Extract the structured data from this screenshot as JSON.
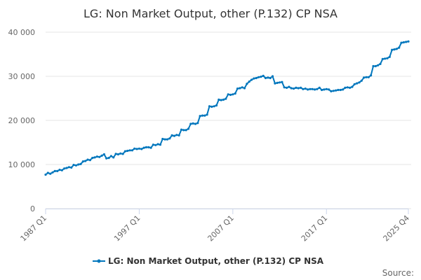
{
  "chart_data": {
    "type": "line",
    "title": "LG: Non Market Output, other (P.132) CP NSA",
    "xlabel": "",
    "ylabel": "",
    "ylim": [
      0,
      40000
    ],
    "yticks": [
      0,
      10000,
      20000,
      30000,
      40000
    ],
    "ytick_labels": [
      "0",
      "10 000",
      "20 000",
      "30 000",
      "40 000"
    ],
    "xlim": [
      "1987 Q1",
      "2025 Q4"
    ],
    "xticks": [
      "1987 Q1",
      "1997 Q1",
      "2007 Q1",
      "2017 Q1",
      "2025 Q4"
    ],
    "grid": true,
    "legend_position": "bottom",
    "series": [
      {
        "name": "LG: Non Market Output, other (P.132) CP NSA",
        "color": "#0277bd",
        "points": [
          [
            "1987 Q1",
            7700
          ],
          [
            "1987 Q2",
            8100
          ],
          [
            "1987 Q3",
            7900
          ],
          [
            "1987 Q4",
            8200
          ],
          [
            "1988 Q1",
            8500
          ],
          [
            "1988 Q2",
            8500
          ],
          [
            "1988 Q3",
            8800
          ],
          [
            "1988 Q4",
            8700
          ],
          [
            "1989 Q1",
            9100
          ],
          [
            "1989 Q2",
            9200
          ],
          [
            "1989 Q3",
            9400
          ],
          [
            "1989 Q4",
            9300
          ],
          [
            "1990 Q1",
            9900
          ],
          [
            "1990 Q2",
            9800
          ],
          [
            "1990 Q3",
            10000
          ],
          [
            "1990 Q4",
            10100
          ],
          [
            "1991 Q1",
            10700
          ],
          [
            "1991 Q2",
            10800
          ],
          [
            "1991 Q3",
            11100
          ],
          [
            "1991 Q4",
            11000
          ],
          [
            "1992 Q1",
            11500
          ],
          [
            "1992 Q2",
            11600
          ],
          [
            "1992 Q3",
            11800
          ],
          [
            "1992 Q4",
            11700
          ],
          [
            "1993 Q1",
            12000
          ],
          [
            "1993 Q2",
            12300
          ],
          [
            "1993 Q3",
            11400
          ],
          [
            "1993 Q4",
            11500
          ],
          [
            "1994 Q1",
            11900
          ],
          [
            "1994 Q2",
            11600
          ],
          [
            "1994 Q3",
            12400
          ],
          [
            "1994 Q4",
            12300
          ],
          [
            "1995 Q1",
            12500
          ],
          [
            "1995 Q2",
            12400
          ],
          [
            "1995 Q3",
            13000
          ],
          [
            "1995 Q4",
            13100
          ],
          [
            "1996 Q1",
            13200
          ],
          [
            "1996 Q2",
            13200
          ],
          [
            "1996 Q3",
            13600
          ],
          [
            "1996 Q4",
            13500
          ],
          [
            "1997 Q1",
            13600
          ],
          [
            "1997 Q2",
            13500
          ],
          [
            "1997 Q3",
            13800
          ],
          [
            "1997 Q4",
            13900
          ],
          [
            "1998 Q1",
            13900
          ],
          [
            "1998 Q2",
            13800
          ],
          [
            "1998 Q3",
            14500
          ],
          [
            "1998 Q4",
            14400
          ],
          [
            "1999 Q1",
            14600
          ],
          [
            "1999 Q2",
            14500
          ],
          [
            "1999 Q3",
            15800
          ],
          [
            "1999 Q4",
            15700
          ],
          [
            "2000 Q1",
            15700
          ],
          [
            "2000 Q2",
            15900
          ],
          [
            "2000 Q3",
            16600
          ],
          [
            "2000 Q4",
            16500
          ],
          [
            "2001 Q1",
            16700
          ],
          [
            "2001 Q2",
            16600
          ],
          [
            "2001 Q3",
            17900
          ],
          [
            "2001 Q4",
            17800
          ],
          [
            "2002 Q1",
            17800
          ],
          [
            "2002 Q2",
            18100
          ],
          [
            "2002 Q3",
            19200
          ],
          [
            "2002 Q4",
            19300
          ],
          [
            "2003 Q1",
            19200
          ],
          [
            "2003 Q2",
            19400
          ],
          [
            "2003 Q3",
            21000
          ],
          [
            "2003 Q4",
            21100
          ],
          [
            "2004 Q1",
            21100
          ],
          [
            "2004 Q2",
            21300
          ],
          [
            "2004 Q3",
            23200
          ],
          [
            "2004 Q4",
            23100
          ],
          [
            "2005 Q1",
            23200
          ],
          [
            "2005 Q2",
            23400
          ],
          [
            "2005 Q3",
            24700
          ],
          [
            "2005 Q4",
            24600
          ],
          [
            "2006 Q1",
            24700
          ],
          [
            "2006 Q2",
            24900
          ],
          [
            "2006 Q3",
            25900
          ],
          [
            "2006 Q4",
            25800
          ],
          [
            "2007 Q1",
            25900
          ],
          [
            "2007 Q2",
            26100
          ],
          [
            "2007 Q3",
            27200
          ],
          [
            "2007 Q4",
            27300
          ],
          [
            "2008 Q1",
            27500
          ],
          [
            "2008 Q2",
            27300
          ],
          [
            "2008 Q3",
            28300
          ],
          [
            "2008 Q4",
            28800
          ],
          [
            "2009 Q1",
            29200
          ],
          [
            "2009 Q2",
            29500
          ],
          [
            "2009 Q3",
            29600
          ],
          [
            "2009 Q4",
            29800
          ],
          [
            "2010 Q1",
            29900
          ],
          [
            "2010 Q2",
            30100
          ],
          [
            "2010 Q3",
            29600
          ],
          [
            "2010 Q4",
            29700
          ],
          [
            "2011 Q1",
            29600
          ],
          [
            "2011 Q2",
            30000
          ],
          [
            "2011 Q3",
            28400
          ],
          [
            "2011 Q4",
            28500
          ],
          [
            "2012 Q1",
            28600
          ],
          [
            "2012 Q2",
            28700
          ],
          [
            "2012 Q3",
            27500
          ],
          [
            "2012 Q4",
            27400
          ],
          [
            "2013 Q1",
            27600
          ],
          [
            "2013 Q2",
            27300
          ],
          [
            "2013 Q3",
            27200
          ],
          [
            "2013 Q4",
            27400
          ],
          [
            "2014 Q1",
            27300
          ],
          [
            "2014 Q2",
            27400
          ],
          [
            "2014 Q3",
            27100
          ],
          [
            "2014 Q4",
            27200
          ],
          [
            "2015 Q1",
            27000
          ],
          [
            "2015 Q2",
            27100
          ],
          [
            "2015 Q3",
            27100
          ],
          [
            "2015 Q4",
            27000
          ],
          [
            "2016 Q1",
            27100
          ],
          [
            "2016 Q2",
            27400
          ],
          [
            "2016 Q3",
            26900
          ],
          [
            "2016 Q4",
            27000
          ],
          [
            "2017 Q1",
            27100
          ],
          [
            "2017 Q2",
            27000
          ],
          [
            "2017 Q3",
            26600
          ],
          [
            "2017 Q4",
            26700
          ],
          [
            "2018 Q1",
            26800
          ],
          [
            "2018 Q2",
            26900
          ],
          [
            "2018 Q3",
            26900
          ],
          [
            "2018 Q4",
            27000
          ],
          [
            "2019 Q1",
            27400
          ],
          [
            "2019 Q2",
            27500
          ],
          [
            "2019 Q3",
            27400
          ],
          [
            "2019 Q4",
            27600
          ],
          [
            "2020 Q1",
            28200
          ],
          [
            "2020 Q2",
            28400
          ],
          [
            "2020 Q3",
            28600
          ],
          [
            "2020 Q4",
            29000
          ],
          [
            "2021 Q1",
            29700
          ],
          [
            "2021 Q2",
            29800
          ],
          [
            "2021 Q3",
            29800
          ],
          [
            "2021 Q4",
            30200
          ],
          [
            "2022 Q1",
            32300
          ],
          [
            "2022 Q2",
            32300
          ],
          [
            "2022 Q3",
            32500
          ],
          [
            "2022 Q4",
            32800
          ],
          [
            "2023 Q1",
            33900
          ],
          [
            "2023 Q2",
            34000
          ],
          [
            "2023 Q3",
            34100
          ],
          [
            "2023 Q4",
            34400
          ],
          [
            "2024 Q1",
            36000
          ],
          [
            "2024 Q2",
            36100
          ],
          [
            "2024 Q3",
            36200
          ],
          [
            "2024 Q4",
            36500
          ],
          [
            "2025 Q1",
            37600
          ],
          [
            "2025 Q2",
            37700
          ],
          [
            "2025 Q3",
            37800
          ],
          [
            "2025 Q4",
            37900
          ]
        ]
      }
    ]
  },
  "footer": {
    "source_label": "Source:"
  }
}
